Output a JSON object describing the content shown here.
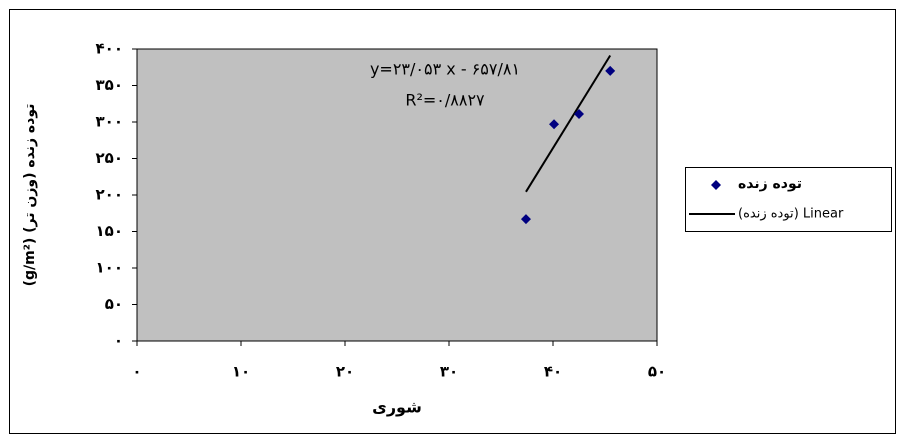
{
  "chart_data": {
    "type": "scatter",
    "series": [
      {
        "name": "توده زنده",
        "color": "#000080",
        "x": [
          37.4,
          40.1,
          42.5,
          45.5
        ],
        "values": [
          167,
          297,
          311,
          370
        ]
      }
    ],
    "trendline": {
      "name": "(توده زنده) Linear",
      "slope": 23.053,
      "intercept": -657.81,
      "color": "#000000"
    },
    "annotations": [
      "y=۲۳/۰۵۳ x - ۶۵۷/۸۱",
      "R²=۰/۸۸۲۷"
    ],
    "x_label": "شوری",
    "y_label": "(g/m²) توده زنده (وزن تر)",
    "xlim": [
      0,
      50
    ],
    "xticks": [
      {
        "value": 0,
        "label": "۰"
      },
      {
        "value": 10,
        "label": "۱۰"
      },
      {
        "value": 20,
        "label": "۲۰"
      },
      {
        "value": 30,
        "label": "۳۰"
      },
      {
        "value": 40,
        "label": "۴۰"
      },
      {
        "value": 50,
        "label": "۵۰"
      }
    ],
    "ylim": [
      0,
      400
    ],
    "yticks": [
      {
        "value": 0,
        "label": "۰"
      },
      {
        "value": 50,
        "label": "۵۰"
      },
      {
        "value": 100,
        "label": "۱۰۰"
      },
      {
        "value": 150,
        "label": "۱۵۰"
      },
      {
        "value": 200,
        "label": "۲۰۰"
      },
      {
        "value": 250,
        "label": "۲۵۰"
      },
      {
        "value": 300,
        "label": "۳۰۰"
      },
      {
        "value": 350,
        "label": "۳۵۰"
      },
      {
        "value": 400,
        "label": "۴۰۰"
      }
    ],
    "plot_background": "#c0c0c0",
    "legend": "right"
  }
}
